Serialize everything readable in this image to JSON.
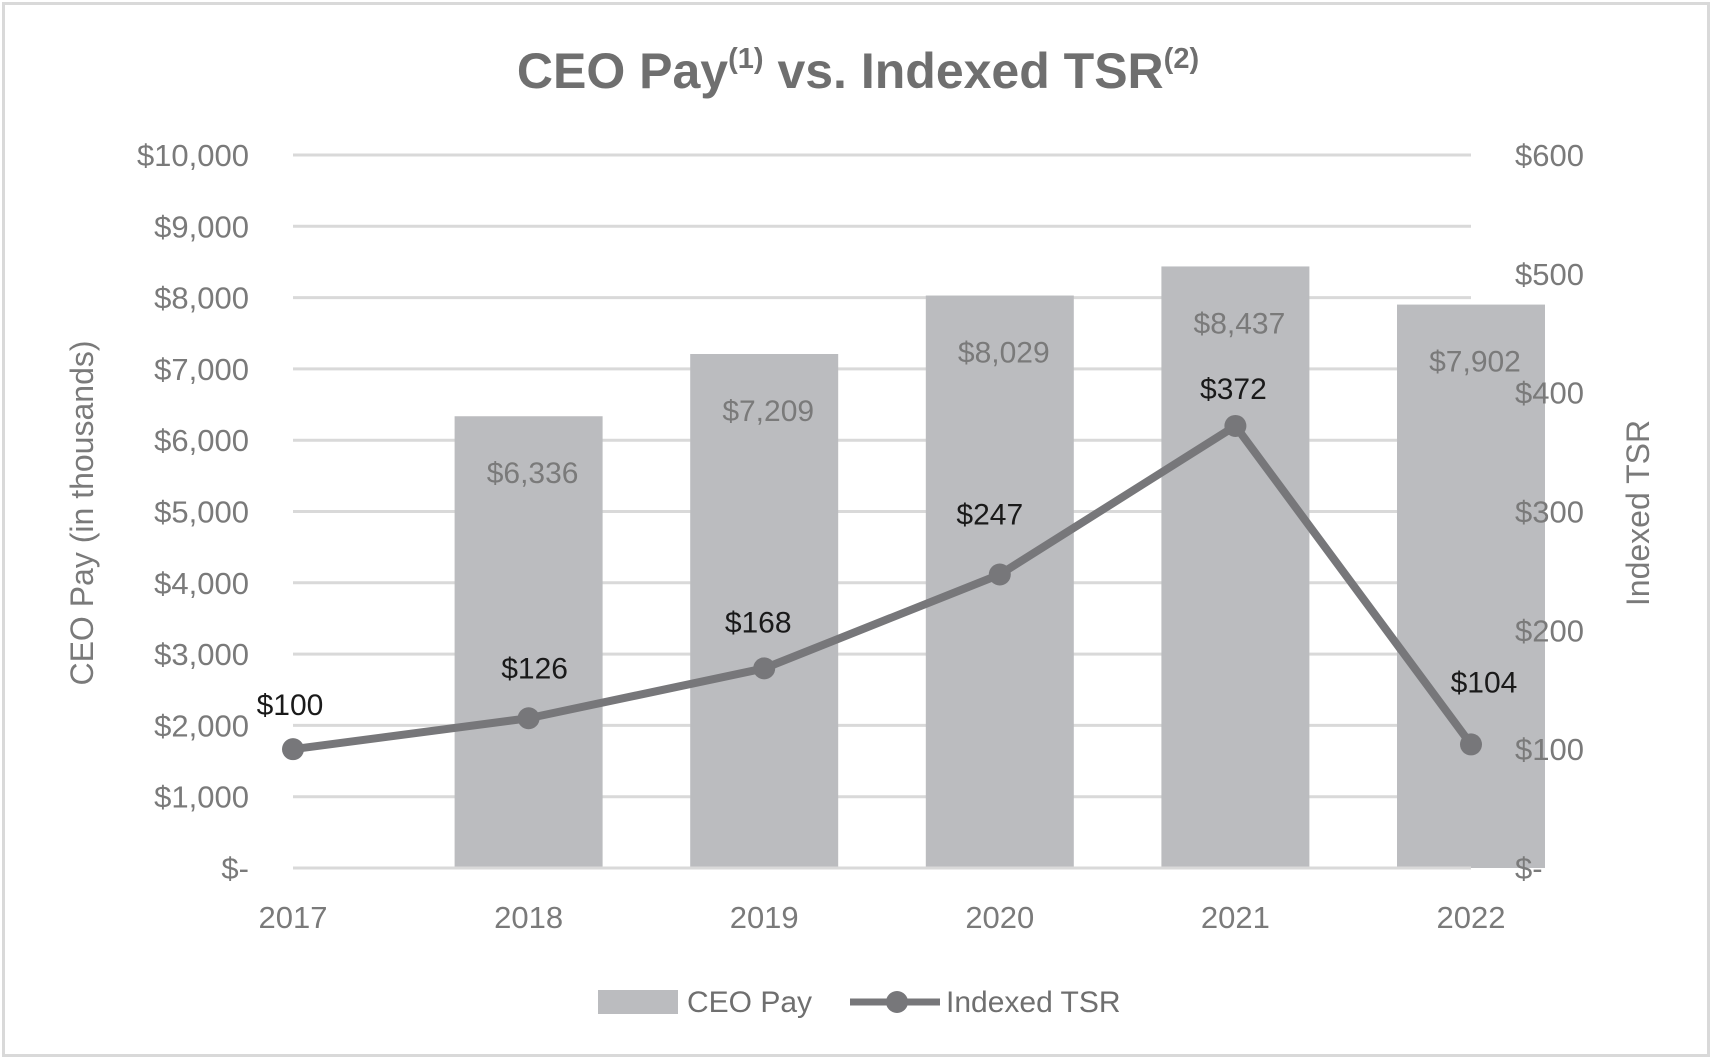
{
  "chart_data": {
    "type": "bar+line",
    "title": "CEO Pay",
    "title_sup1": "(1)",
    "title_mid": " vs. Indexed TSR",
    "title_sup2": "(2)",
    "categories": [
      "2017",
      "2018",
      "2019",
      "2020",
      "2021",
      "2022"
    ],
    "series": [
      {
        "name": "CEO Pay",
        "kind": "bar",
        "axis": "left",
        "values": [
          null,
          6336,
          7209,
          8029,
          8437,
          7902
        ],
        "labels": [
          "",
          "$6,336",
          "$7,209",
          "$8,029",
          "$8,437",
          "$7,902"
        ]
      },
      {
        "name": "Indexed TSR",
        "kind": "line",
        "axis": "right",
        "values": [
          100,
          126,
          168,
          247,
          372,
          104
        ],
        "labels": [
          "$100",
          "$126",
          "$168",
          "$247",
          "$372",
          "$104"
        ]
      }
    ],
    "left_axis": {
      "label": "CEO Pay (in thousands)",
      "range": [
        0,
        10000
      ],
      "ticks": [
        0,
        1000,
        2000,
        3000,
        4000,
        5000,
        6000,
        7000,
        8000,
        9000,
        10000
      ],
      "tick_labels": [
        "$-",
        "$1,000",
        "$2,000",
        "$3,000",
        "$4,000",
        "$5,000",
        "$6,000",
        "$7,000",
        "$8,000",
        "$9,000",
        "$10,000"
      ]
    },
    "right_axis": {
      "label": "Indexed TSR",
      "range": [
        0,
        600
      ],
      "ticks": [
        0,
        100,
        200,
        300,
        400,
        500,
        600
      ],
      "tick_labels": [
        "$-",
        "$100",
        "$200",
        "$300",
        "$400",
        "$500",
        "$600"
      ]
    },
    "grid": true,
    "legend_position": "bottom",
    "colors": {
      "bar": "#bbbcbf",
      "line": "#77777a",
      "grid": "#d9d9d9",
      "baseline": "#d9d9d9"
    }
  }
}
